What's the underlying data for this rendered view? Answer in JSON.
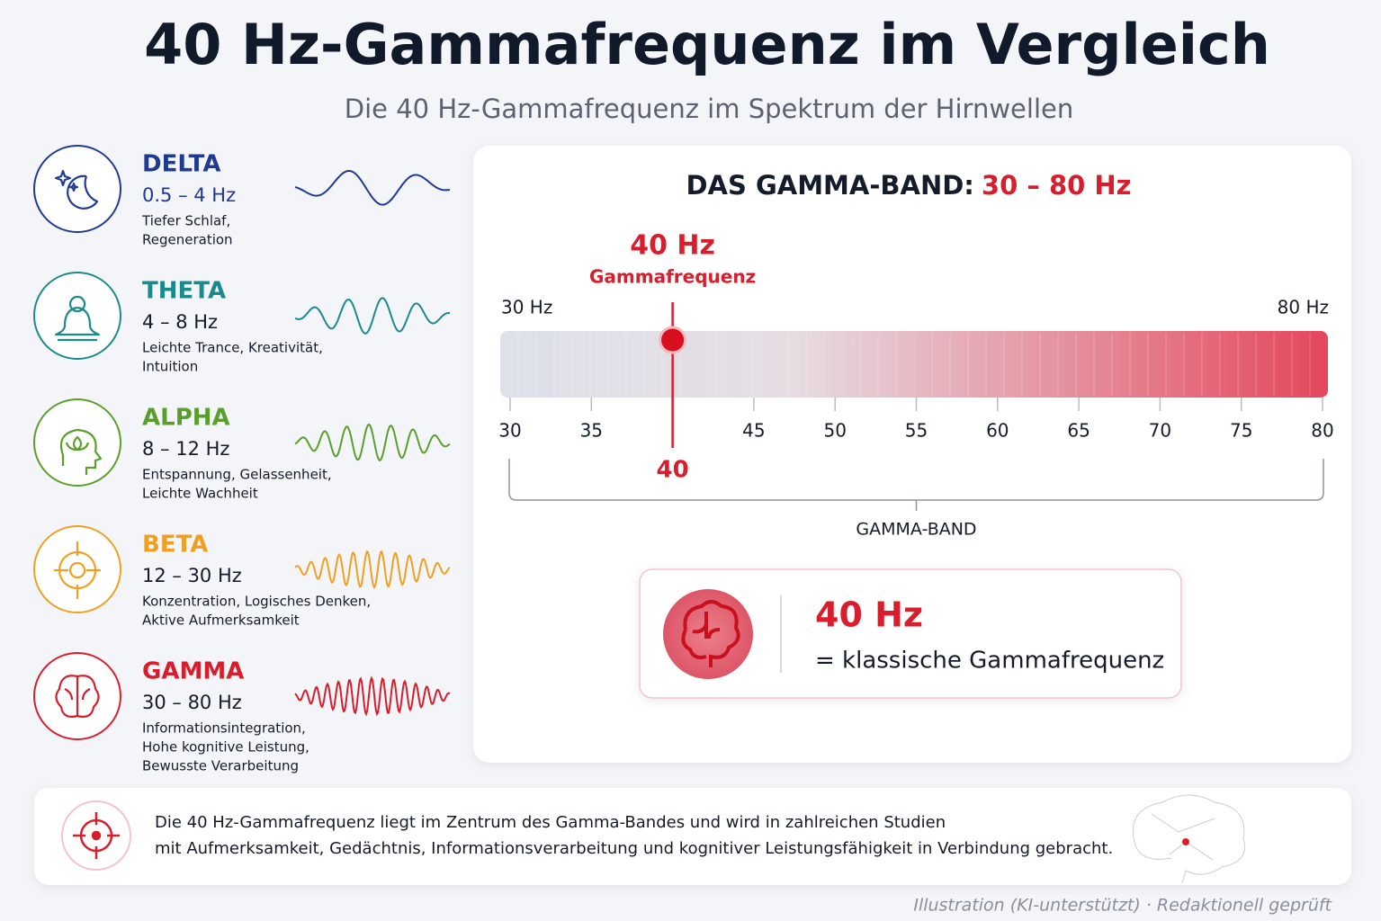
{
  "header": {
    "title": "40 Hz-Gammafrequenz im Vergleich",
    "subtitle": "Die 40 Hz-Gammafrequenz im Spektrum der Hirnwellen"
  },
  "waves": [
    {
      "name": "DELTA",
      "range": "0.5 – 4 Hz",
      "description": [
        "Tiefer Schlaf,",
        "Regeneration"
      ]
    },
    {
      "name": "THETA",
      "range": "4 – 8 Hz",
      "description": [
        "Leichte Trance, Kreativität,",
        "Intuition"
      ]
    },
    {
      "name": "ALPHA",
      "range": "8 – 12 Hz",
      "description": [
        "Entspannung, Gelassenheit,",
        "Leichte Wachheit"
      ]
    },
    {
      "name": "BETA",
      "range": "12 – 30 Hz",
      "description": [
        "Konzentration, Logisches Denken,",
        "Aktive Aufmerksamkeit"
      ]
    },
    {
      "name": "GAMMA",
      "range": "30 – 80 Hz",
      "description": [
        "Informationsintegration,",
        "Hohe kognitive Leistung,",
        "Bewusste Verarbeitung"
      ]
    }
  ],
  "gamma_panel": {
    "heading": "DAS GAMMA-BAND:",
    "heading_range": "30 – 80 Hz",
    "start_label": "30 Hz",
    "end_label": "80 Hz",
    "ticks": [
      30,
      35,
      45,
      50,
      55,
      60,
      65,
      70,
      75,
      80
    ],
    "marker": {
      "value": 40,
      "label": "40 Hz",
      "name": "Gammafrequenz"
    },
    "bracket_label": "GAMMA-BAND",
    "callout": {
      "value": "40 Hz",
      "text": "= klassische Gammafrequenz"
    }
  },
  "footer": {
    "lines": [
      "Die 40 Hz-Gammafrequenz liegt im Zentrum des Gamma-Bandes und wird in zahlreichen Studien",
      "mit Aufmerksamkeit, Gedächtnis, Informationsverarbeitung und kognitiver Leistungsfähigkeit in Verbindung gebracht."
    ],
    "credit": "Illustration (KI-unterstützt) · Redaktionell geprüft"
  }
}
